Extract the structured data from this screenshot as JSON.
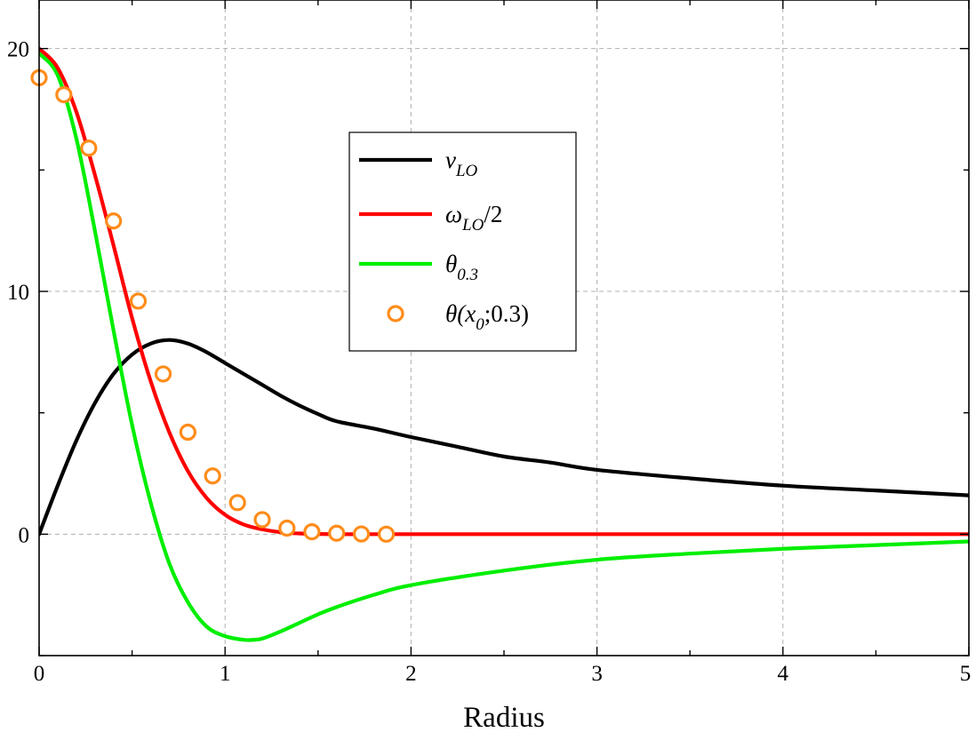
{
  "chart_data": {
    "type": "line",
    "xlabel": "Radius",
    "ylabel": "",
    "xlim": [
      0,
      5
    ],
    "ylim": [
      -5,
      22
    ],
    "x_ticks": [
      "0",
      "1",
      "2",
      "3",
      "4",
      "5"
    ],
    "y_ticks": [
      "0",
      "10",
      "20"
    ],
    "grid": true,
    "legend_position": "upper-center",
    "colors": {
      "v_LO": "#000000",
      "omega_LO_half": "#ff0000",
      "theta_03": "#00ee00",
      "theta_x0": "#ff8c1a"
    },
    "legend": [
      {
        "key": "v_LO",
        "kind": "line",
        "main": "v",
        "sub": "LO",
        "suffix": ""
      },
      {
        "key": "omega_LO_half",
        "kind": "line",
        "main": "ω",
        "sub": "LO",
        "suffix": "/2"
      },
      {
        "key": "theta_03",
        "kind": "line",
        "main": "θ",
        "sub": "0.3",
        "suffix": ""
      },
      {
        "key": "theta_x0",
        "kind": "marker",
        "main": "θ(x",
        "sub": "0",
        "suffix": ";0.3)"
      }
    ],
    "series": [
      {
        "key": "v_LO",
        "x": [
          0,
          0.1,
          0.2,
          0.3,
          0.4,
          0.5,
          0.6,
          0.7,
          0.8,
          0.9,
          1.0,
          1.1,
          1.2,
          1.3,
          1.4,
          1.5,
          1.6,
          1.8,
          2.0,
          2.25,
          2.5,
          2.75,
          3.0,
          3.5,
          4.0,
          4.5,
          5.0
        ],
        "y": [
          0,
          2.0,
          3.85,
          5.4,
          6.6,
          7.4,
          7.85,
          8.0,
          7.85,
          7.5,
          7.05,
          6.6,
          6.15,
          5.7,
          5.3,
          4.95,
          4.65,
          4.35,
          4.0,
          3.6,
          3.2,
          2.95,
          2.65,
          2.3,
          2.0,
          1.8,
          1.6
        ]
      },
      {
        "key": "omega_LO_half",
        "x": [
          0,
          0.1,
          0.2,
          0.3,
          0.4,
          0.5,
          0.6,
          0.7,
          0.8,
          0.9,
          1.0,
          1.1,
          1.2,
          1.3,
          1.4,
          1.5,
          1.6,
          1.8,
          2.0,
          2.5,
          3.0,
          3.5,
          4.0,
          4.5,
          5.0
        ],
        "y": [
          20.0,
          19.2,
          17.4,
          14.8,
          11.9,
          8.9,
          6.3,
          4.2,
          2.6,
          1.5,
          0.8,
          0.4,
          0.2,
          0.08,
          0.03,
          0.01,
          0,
          0,
          0,
          0,
          0,
          0,
          0,
          0,
          0
        ]
      },
      {
        "key": "theta_03",
        "x": [
          0,
          0.1,
          0.2,
          0.3,
          0.4,
          0.5,
          0.6,
          0.7,
          0.8,
          0.9,
          1.0,
          1.1,
          1.15,
          1.2,
          1.3,
          1.4,
          1.5,
          1.6,
          1.8,
          2.0,
          2.5,
          3.0,
          3.5,
          4.0,
          4.5,
          5.0
        ],
        "y": [
          19.8,
          18.9,
          16.3,
          12.5,
          8.4,
          4.5,
          1.3,
          -1.2,
          -2.8,
          -3.8,
          -4.2,
          -4.35,
          -4.35,
          -4.3,
          -4.0,
          -3.65,
          -3.3,
          -3.0,
          -2.5,
          -2.1,
          -1.5,
          -1.05,
          -0.8,
          -0.6,
          -0.45,
          -0.3
        ]
      },
      {
        "key": "theta_x0",
        "x": [
          0.0,
          0.133,
          0.267,
          0.4,
          0.533,
          0.667,
          0.8,
          0.933,
          1.067,
          1.2,
          1.333,
          1.467,
          1.6,
          1.733,
          1.867
        ],
        "y": [
          18.8,
          18.1,
          15.9,
          12.9,
          9.6,
          6.6,
          4.2,
          2.4,
          1.3,
          0.6,
          0.25,
          0.1,
          0.04,
          0.01,
          0
        ]
      }
    ]
  }
}
